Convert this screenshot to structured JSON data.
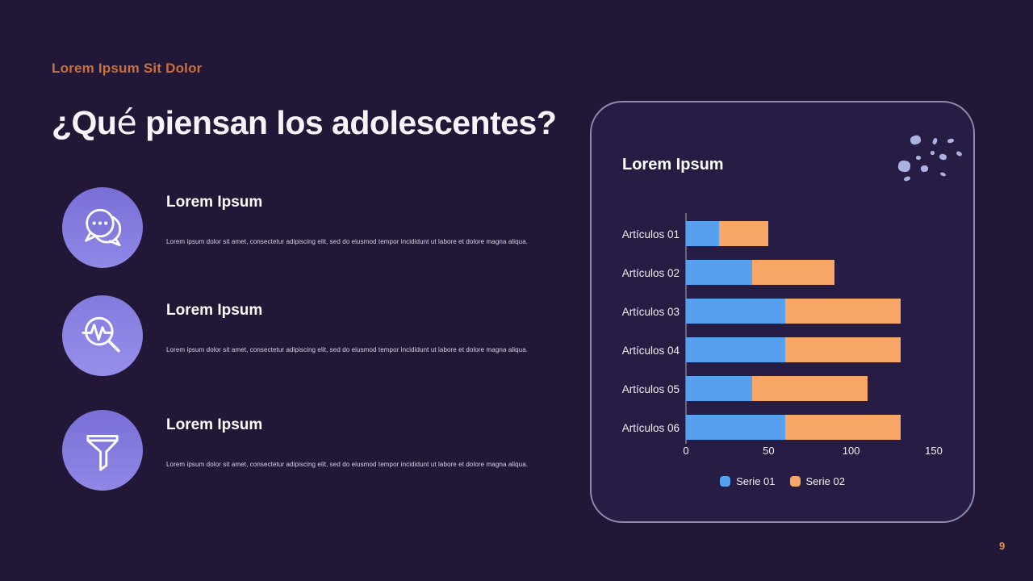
{
  "page": {
    "kicker": "Lorem Ipsum Sit Dolor",
    "heading": "¿Qué piensan los adolescentes?",
    "page_number": "9"
  },
  "list": {
    "items": [
      {
        "icon": "chat-bubbles-icon",
        "title": "Lorem Ipsum",
        "body": "Lorem ipsum dolor sit amet, consectetur adipiscing elit, sed do eiusmod tempor incididunt ut labore et dolore magna aliqua."
      },
      {
        "icon": "pulse-magnifier-icon",
        "title": "Lorem Ipsum",
        "body": "Lorem ipsum dolor sit amet, consectetur adipiscing elit, sed do eiusmod tempor incididunt ut labore et dolore magna aliqua."
      },
      {
        "icon": "funnel-icon",
        "title": "Lorem Ipsum",
        "body": "Lorem ipsum dolor sit amet, consectetur adipiscing elit, sed do eiusmod tempor incididunt ut labore et dolore magna aliqua."
      }
    ]
  },
  "card": {
    "title": "Lorem Ipsum"
  },
  "chart_data": {
    "type": "bar",
    "orientation": "horizontal",
    "stacked": true,
    "title": "Lorem Ipsum",
    "categories": [
      "Artículos 01",
      "Artículos 02",
      "Artículos 03",
      "Artículos 04",
      "Artículos 05",
      "Artículos 06"
    ],
    "series": [
      {
        "name": "Serie 01",
        "color": "#57a0f0",
        "values": [
          20,
          40,
          60,
          60,
          40,
          60
        ]
      },
      {
        "name": "Serie 02",
        "color": "#f8a766",
        "values": [
          30,
          50,
          70,
          70,
          70,
          70
        ]
      }
    ],
    "xlim": [
      0,
      150
    ],
    "xticks": [
      0,
      50,
      100,
      150
    ],
    "grid": false,
    "legend_position": "bottom"
  },
  "colors": {
    "background": "#221737",
    "card_background": "#271c43",
    "card_border": "#8d8bad",
    "accent_orange": "#c8703c",
    "icon_circle_purple": "#8279dd",
    "confetti": "#a9b2e0",
    "serie1_blue": "#57a0f0",
    "serie2_orange": "#f8a766",
    "page_number_orange": "#e09245"
  }
}
